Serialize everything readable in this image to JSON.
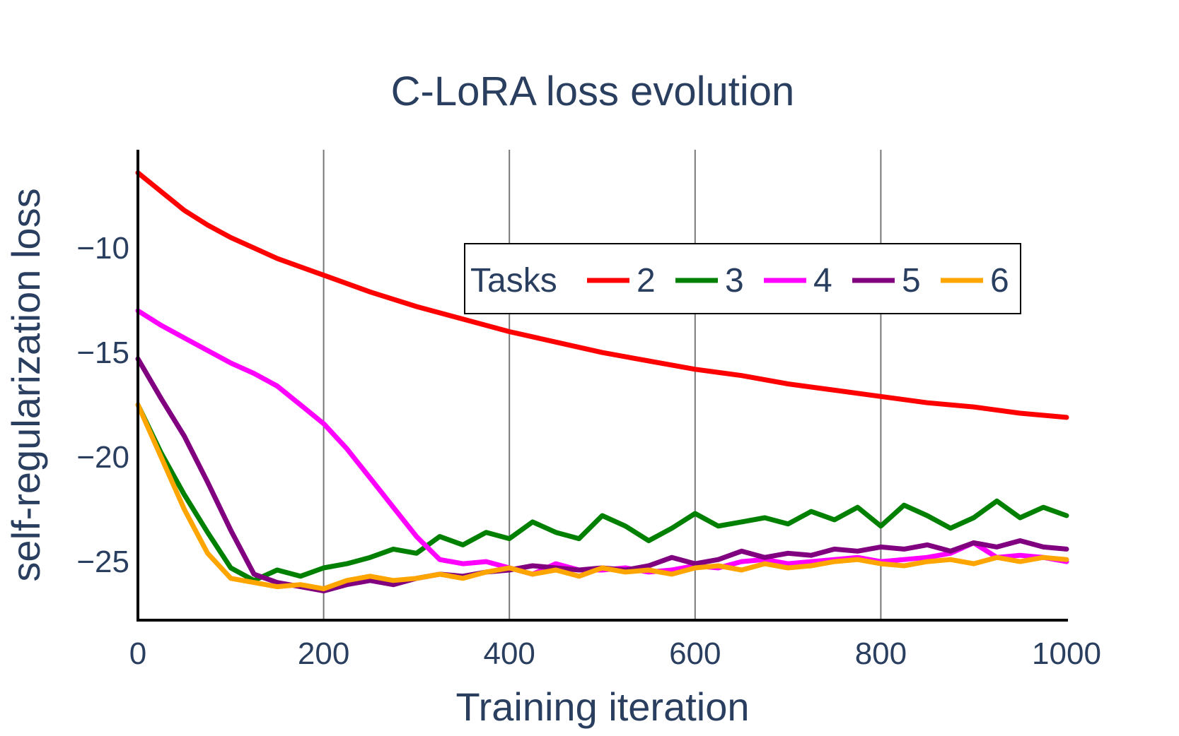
{
  "chart_data": {
    "type": "line",
    "title": "C-LoRA loss evolution",
    "xlabel": "Training iteration",
    "ylabel": "self-regularization loss",
    "xlim": [
      0,
      1000
    ],
    "ylim": [
      -27.8,
      -5.3
    ],
    "xticks": [
      0,
      200,
      400,
      600,
      800,
      1000
    ],
    "xtick_labels": [
      "0",
      "200",
      "400",
      "600",
      "800",
      "1000"
    ],
    "yticks": [
      -10,
      -15,
      -20,
      -25
    ],
    "ytick_labels": [
      "−10",
      "−15",
      "−20",
      "−25"
    ],
    "grid": "vertical",
    "legend": {
      "title": "Tasks",
      "placement": "top-right"
    },
    "series": [
      {
        "name": "2",
        "color": "#ff0000",
        "x": [
          0,
          25,
          50,
          75,
          100,
          125,
          150,
          175,
          200,
          250,
          300,
          350,
          400,
          450,
          500,
          550,
          600,
          650,
          700,
          750,
          800,
          850,
          900,
          950,
          1000
        ],
        "y": [
          -6.4,
          -7.3,
          -8.2,
          -8.9,
          -9.5,
          -10.0,
          -10.5,
          -10.9,
          -11.3,
          -12.1,
          -12.8,
          -13.4,
          -14.0,
          -14.5,
          -15.0,
          -15.4,
          -15.8,
          -16.1,
          -16.5,
          -16.8,
          -17.1,
          -17.4,
          -17.6,
          -17.9,
          -18.1
        ]
      },
      {
        "name": "3",
        "color": "#008000",
        "x": [
          0,
          25,
          50,
          75,
          100,
          125,
          150,
          175,
          200,
          225,
          250,
          275,
          300,
          325,
          350,
          375,
          400,
          425,
          450,
          475,
          500,
          525,
          550,
          575,
          600,
          625,
          650,
          675,
          700,
          725,
          750,
          775,
          800,
          825,
          850,
          875,
          900,
          925,
          950,
          975,
          1000
        ],
        "y": [
          -17.5,
          -19.8,
          -21.8,
          -23.6,
          -25.3,
          -25.9,
          -25.4,
          -25.7,
          -25.3,
          -25.1,
          -24.8,
          -24.4,
          -24.6,
          -23.8,
          -24.2,
          -23.6,
          -23.9,
          -23.1,
          -23.6,
          -23.9,
          -22.8,
          -23.3,
          -24.0,
          -23.4,
          -22.7,
          -23.3,
          -23.1,
          -22.9,
          -23.2,
          -22.6,
          -23.0,
          -22.4,
          -23.3,
          -22.3,
          -22.8,
          -23.4,
          -22.9,
          -22.1,
          -22.9,
          -22.4,
          -22.8
        ]
      },
      {
        "name": "4",
        "color": "#ff00ff",
        "x": [
          0,
          25,
          50,
          75,
          100,
          125,
          150,
          175,
          200,
          225,
          250,
          275,
          300,
          325,
          350,
          375,
          400,
          425,
          450,
          475,
          500,
          525,
          550,
          575,
          600,
          625,
          650,
          675,
          700,
          725,
          750,
          775,
          800,
          825,
          850,
          875,
          900,
          925,
          950,
          975,
          1000
        ],
        "y": [
          -13.0,
          -13.7,
          -14.3,
          -14.9,
          -15.5,
          -16.0,
          -16.6,
          -17.5,
          -18.4,
          -19.6,
          -21.0,
          -22.4,
          -23.8,
          -24.9,
          -25.1,
          -25.0,
          -25.3,
          -25.6,
          -25.1,
          -25.4,
          -25.4,
          -25.3,
          -25.5,
          -25.4,
          -25.2,
          -25.3,
          -25.0,
          -24.9,
          -25.1,
          -25.0,
          -24.9,
          -24.8,
          -25.0,
          -24.9,
          -24.8,
          -24.6,
          -24.1,
          -24.8,
          -24.7,
          -24.8,
          -25.0
        ]
      },
      {
        "name": "5",
        "color": "#800080",
        "x": [
          0,
          25,
          50,
          75,
          100,
          125,
          150,
          175,
          200,
          225,
          250,
          275,
          300,
          325,
          350,
          375,
          400,
          425,
          450,
          475,
          500,
          525,
          550,
          575,
          600,
          625,
          650,
          675,
          700,
          725,
          750,
          775,
          800,
          825,
          850,
          875,
          900,
          925,
          950,
          975,
          1000
        ],
        "y": [
          -15.3,
          -17.2,
          -19.0,
          -21.2,
          -23.5,
          -25.6,
          -26.0,
          -26.2,
          -26.4,
          -26.1,
          -25.9,
          -26.1,
          -25.8,
          -25.6,
          -25.7,
          -25.5,
          -25.4,
          -25.2,
          -25.3,
          -25.4,
          -25.3,
          -25.4,
          -25.2,
          -24.8,
          -25.1,
          -24.9,
          -24.5,
          -24.8,
          -24.6,
          -24.7,
          -24.4,
          -24.5,
          -24.3,
          -24.4,
          -24.2,
          -24.5,
          -24.1,
          -24.3,
          -24.0,
          -24.3,
          -24.4
        ]
      },
      {
        "name": "6",
        "color": "#ffa500",
        "x": [
          0,
          25,
          50,
          75,
          100,
          125,
          150,
          175,
          200,
          225,
          250,
          275,
          300,
          325,
          350,
          375,
          400,
          425,
          450,
          475,
          500,
          525,
          550,
          575,
          600,
          625,
          650,
          675,
          700,
          725,
          750,
          775,
          800,
          825,
          850,
          875,
          900,
          925,
          950,
          975,
          1000
        ],
        "y": [
          -17.5,
          -20.0,
          -22.5,
          -24.6,
          -25.8,
          -26.0,
          -26.2,
          -26.1,
          -26.3,
          -25.9,
          -25.7,
          -25.9,
          -25.8,
          -25.6,
          -25.8,
          -25.5,
          -25.3,
          -25.6,
          -25.4,
          -25.7,
          -25.3,
          -25.5,
          -25.4,
          -25.6,
          -25.3,
          -25.2,
          -25.4,
          -25.1,
          -25.3,
          -25.2,
          -25.0,
          -24.9,
          -25.1,
          -25.2,
          -25.0,
          -24.9,
          -25.1,
          -24.8,
          -25.0,
          -24.8,
          -24.9
        ]
      }
    ]
  }
}
